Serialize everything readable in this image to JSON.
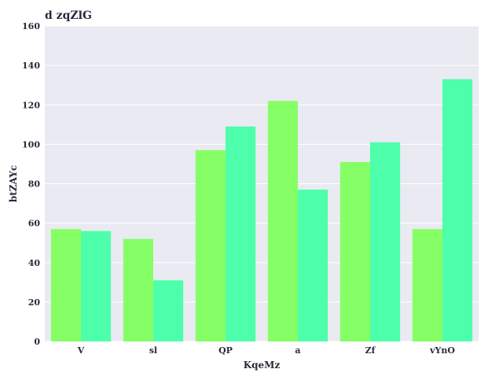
{
  "chart_data": {
    "type": "bar",
    "title": "d zqZlG",
    "xlabel": "KqeMz",
    "ylabel": "btZAYc",
    "categories": [
      "V",
      "sl",
      "QP",
      "a",
      "Zf",
      "vYnO"
    ],
    "series": [
      {
        "values": [
          57,
          52,
          97,
          122,
          91,
          57
        ],
        "color": "#86ff66"
      },
      {
        "values": [
          56,
          31,
          109,
          77,
          101,
          133
        ],
        "color": "#4dffaa"
      }
    ],
    "ylim": [
      0,
      160
    ],
    "yticks": [
      0,
      20,
      40,
      60,
      80,
      100,
      120,
      140,
      160
    ],
    "grid": true,
    "plot_background": "#eaeaf2"
  }
}
